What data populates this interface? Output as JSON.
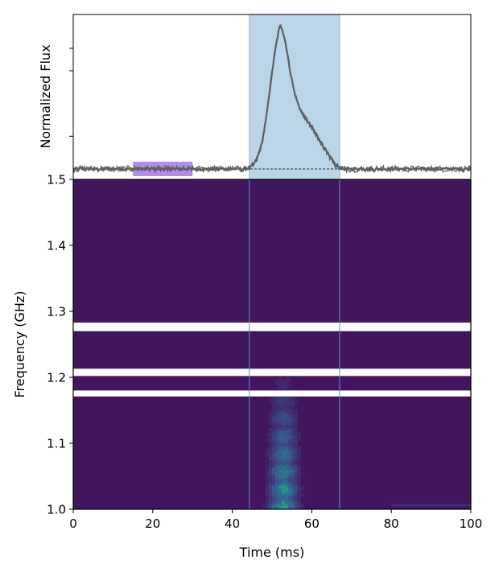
{
  "chart_data": [
    {
      "panel": "top",
      "type": "line",
      "ylabel": "Normalized Flux",
      "xlim": [
        0,
        100
      ],
      "ylim": [
        -0.08,
        1.18
      ],
      "baseline": 0,
      "series": [
        {
          "x": [
            0,
            5,
            10,
            15,
            20,
            25,
            30,
            35,
            40,
            43,
            44.5,
            45.5,
            46.5,
            47.5,
            48.5,
            49.5,
            50.5,
            51.5,
            52,
            52.5,
            53.5,
            54.5,
            55.5,
            56.5,
            57.5,
            58.5,
            60,
            62,
            63.5,
            65,
            66,
            67,
            68,
            70,
            75,
            80,
            85,
            90,
            95,
            100
          ],
          "y": [
            0,
            0,
            0,
            0,
            0,
            0,
            0,
            0,
            0,
            0,
            0.01,
            0.04,
            0.1,
            0.2,
            0.38,
            0.62,
            0.85,
            1.03,
            1.09,
            1.08,
            0.95,
            0.76,
            0.6,
            0.5,
            0.43,
            0.38,
            0.32,
            0.22,
            0.14,
            0.07,
            0.03,
            0.01,
            0,
            0,
            0,
            0,
            0,
            0,
            0,
            0
          ]
        }
      ],
      "shaded_regions": [
        {
          "x": [
            44.3,
            67
          ],
          "color": "#b3d0e6"
        },
        {
          "x": [
            15,
            30
          ],
          "color": "#a678e8"
        }
      ],
      "colors": {
        "line": "#5f6063",
        "burst_window": "#b3d0e6",
        "offpulse_window": "#a678e8"
      }
    },
    {
      "panel": "bottom",
      "type": "heatmap",
      "xlabel": "Time (ms)",
      "ylabel": "Frequency (GHz)",
      "xlim": [
        0,
        100
      ],
      "ylim": [
        1.0,
        1.5
      ],
      "xticks": [
        0,
        20,
        40,
        60,
        80,
        100
      ],
      "yticks": [
        1.0,
        1.1,
        1.2,
        1.3,
        1.4,
        1.5
      ],
      "masked_bands_GHz": [
        [
          1.27,
          1.283
        ],
        [
          1.202,
          1.213
        ],
        [
          1.171,
          1.18
        ]
      ],
      "burst_window_ms": [
        44.3,
        67
      ],
      "colormap": "viridis",
      "colors": {
        "background": "#41165d",
        "masked": "#ffffff",
        "bright": "#35b779",
        "mid": "#26828e"
      }
    }
  ]
}
